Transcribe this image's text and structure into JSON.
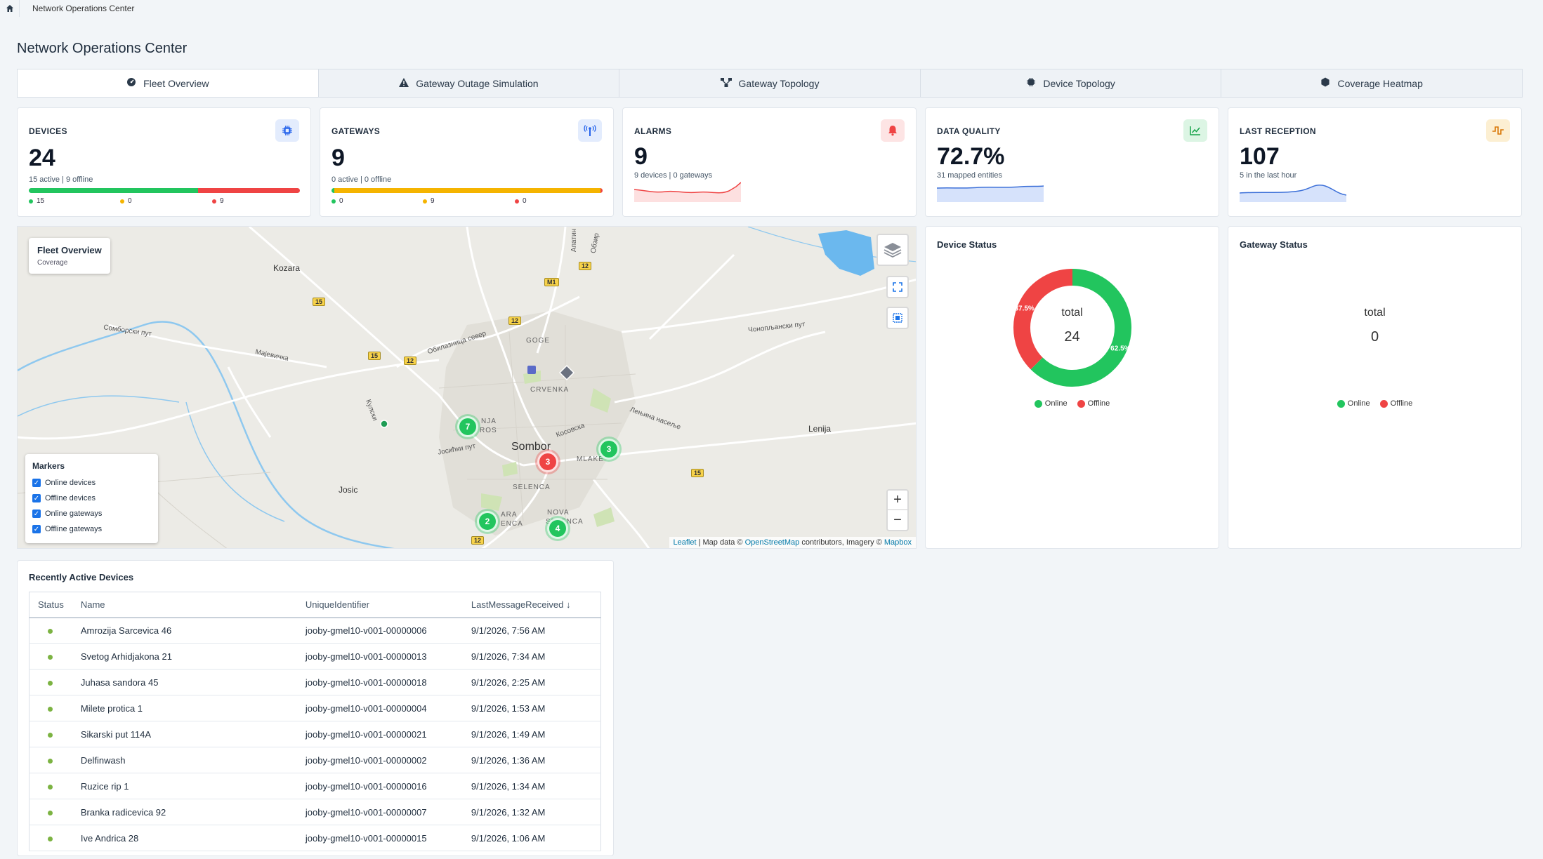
{
  "breadcrumb": {
    "home_icon": "home-icon",
    "current": "Network Operations Center"
  },
  "page_title": "Network Operations Center",
  "tabs": [
    {
      "label": "Fleet Overview",
      "icon": "dashboard-icon",
      "active": true
    },
    {
      "label": "Gateway Outage Simulation",
      "icon": "warning-icon"
    },
    {
      "label": "Gateway Topology",
      "icon": "topology-icon"
    },
    {
      "label": "Device Topology",
      "icon": "chip-icon"
    },
    {
      "label": "Coverage Heatmap",
      "icon": "hexagon-icon"
    }
  ],
  "kpis": {
    "devices": {
      "label": "DEVICES",
      "value": "24",
      "sub": "15 active | 9 offline",
      "bar": [
        15,
        0,
        9
      ],
      "legend": [
        "15",
        "0",
        "9"
      ],
      "icon": "chip-icon",
      "icon_color": "#2563eb"
    },
    "gateways": {
      "label": "GATEWAYS",
      "value": "9",
      "sub": "0 active | 0 offline",
      "bar": [
        0,
        9,
        0
      ],
      "legend": [
        "0",
        "9",
        "0"
      ],
      "icon": "antenna-icon",
      "icon_color": "#2563eb"
    },
    "alarms": {
      "label": "ALARMS",
      "value": "9",
      "sub": "9 devices | 0 gateways",
      "icon": "bell-icon",
      "icon_color": "#ef4444"
    },
    "quality": {
      "label": "DATA QUALITY",
      "value": "72.7%",
      "sub": "31 mapped entities",
      "icon": "trend-icon",
      "icon_color": "#16a34a"
    },
    "reception": {
      "label": "LAST RECEPTION",
      "value": "107",
      "sub": "5 in the last hour",
      "icon": "pulse-icon",
      "icon_color": "#d97706"
    }
  },
  "colors": {
    "online": "#22c55e",
    "warning": "#f5b400",
    "offline": "#ef4444"
  },
  "map": {
    "title": "Fleet Overview",
    "subtitle": "Coverage",
    "markers_title": "Markers",
    "marker_options": [
      "Online devices",
      "Offline devices",
      "Online gateways",
      "Offline gateways"
    ],
    "places": [
      "Kozara",
      "Сомборски пут",
      "Мајевичка",
      "Обилазница север",
      "GOGE",
      "CRVENKA",
      "Чонопљански пут",
      "Кулски",
      "NJA",
      "ROS",
      "Јосићки пут",
      "Sombor",
      "MLAKE",
      "Косовска",
      "Лењина насеље",
      "Lenija",
      "Josic",
      "SELENCA",
      "ARA",
      "ENCA",
      "NOVA",
      "SELENCA",
      "Обзир",
      "Апатин"
    ],
    "road_shields": [
      "12",
      "M1",
      "15",
      "12",
      "15",
      "12",
      "15",
      "12"
    ],
    "clusters": [
      "7",
      "3",
      "3",
      "2",
      "4"
    ],
    "attribution": {
      "leaflet": "Leaflet",
      "mid": " | Map data © ",
      "osm": "OpenStreetMap",
      "mid2": " contributors, Imagery © ",
      "mapbox": "Mapbox"
    },
    "zoom_in": "+",
    "zoom_out": "−"
  },
  "device_status": {
    "title": "Device Status",
    "center_label": "total",
    "total": "24",
    "online_pct": 62.5,
    "offline_pct": 37.5,
    "online_label": "62.5%",
    "offline_label": "37.5%",
    "legend": [
      "Online",
      "Offline"
    ]
  },
  "gateway_status": {
    "title": "Gateway Status",
    "center_label": "total",
    "total": "0",
    "legend": [
      "Online",
      "Offline"
    ]
  },
  "recent": {
    "title": "Recently Active Devices",
    "columns": [
      "Status",
      "Name",
      "UniqueIdentifier",
      "LastMessageReceived"
    ],
    "sort_icon": "↓",
    "rows": [
      {
        "name": "Amrozija Sarcevica 46",
        "uid": "jooby-gmel10-v001-00000006",
        "last": "9/1/2026, 7:56 AM"
      },
      {
        "name": "Svetog Arhidjakona 21",
        "uid": "jooby-gmel10-v001-00000013",
        "last": "9/1/2026, 7:34 AM"
      },
      {
        "name": "Juhasa sandora 45",
        "uid": "jooby-gmel10-v001-00000018",
        "last": "9/1/2026, 2:25 AM"
      },
      {
        "name": "Milete protica 1",
        "uid": "jooby-gmel10-v001-00000004",
        "last": "9/1/2026, 1:53 AM"
      },
      {
        "name": "Sikarski put 114A",
        "uid": "jooby-gmel10-v001-00000021",
        "last": "9/1/2026, 1:49 AM"
      },
      {
        "name": "Delfinwash",
        "uid": "jooby-gmel10-v001-00000002",
        "last": "9/1/2026, 1:36 AM"
      },
      {
        "name": "Ruzice rip 1",
        "uid": "jooby-gmel10-v001-00000016",
        "last": "9/1/2026, 1:34 AM"
      },
      {
        "name": "Branka radicevica 92",
        "uid": "jooby-gmel10-v001-00000007",
        "last": "9/1/2026, 1:32 AM"
      },
      {
        "name": "Ive Andrica 28",
        "uid": "jooby-gmel10-v001-00000015",
        "last": "9/1/2026, 1:06 AM"
      }
    ]
  }
}
